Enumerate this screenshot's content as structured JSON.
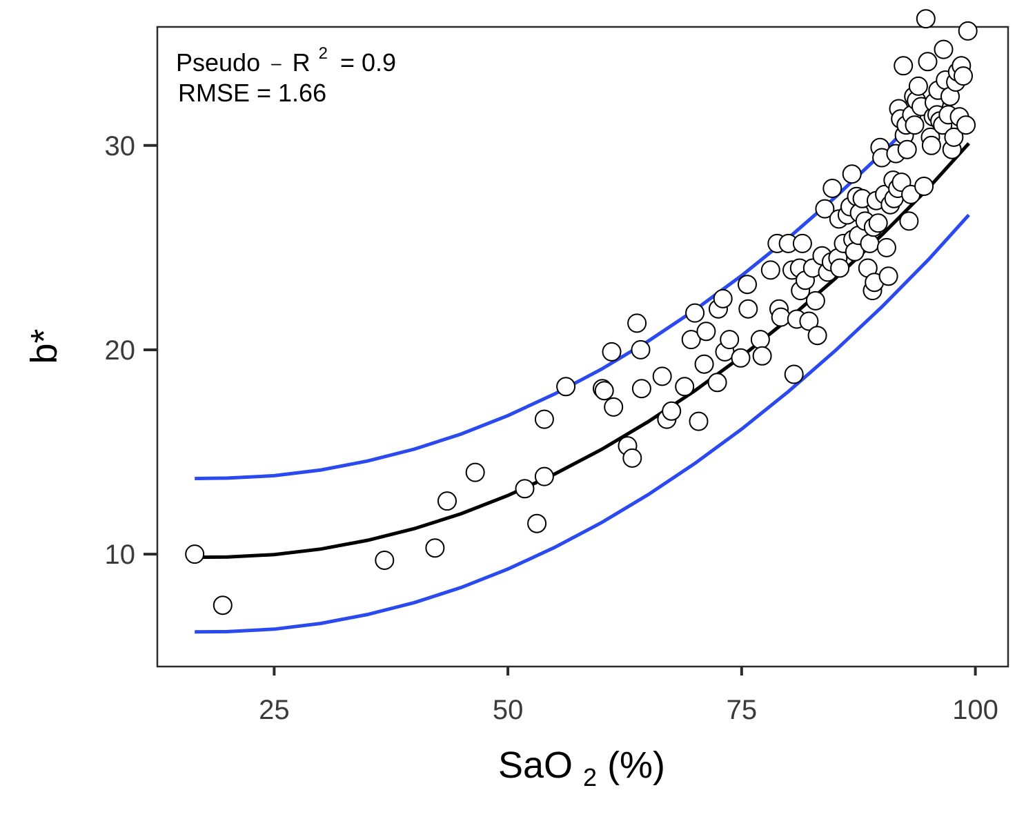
{
  "chart_data": {
    "type": "scatter",
    "xlabel": {
      "base": "SaO",
      "sub": "2",
      "rest": " (%)"
    },
    "ylabel": "b*",
    "xlim": [
      12.5,
      103.5
    ],
    "ylim": [
      4.5,
      35.8
    ],
    "x_ticks": [
      25,
      50,
      75,
      100
    ],
    "y_ticks": [
      10,
      20,
      30
    ],
    "grid": false,
    "annotations": {
      "r2": {
        "prefix": "Pseudo",
        "dash": "–",
        "r": "R",
        "sup": "2",
        "suffix": "= 0.9"
      },
      "rmse": "RMSE = 1.66"
    },
    "colors": {
      "points_fill": "#ffffff",
      "points_stroke": "#000000",
      "fit_line": "#000000",
      "interval_lines": "#2a4af0"
    },
    "fit": {
      "x": [
        16.5,
        20,
        25,
        30,
        35,
        40,
        45,
        50,
        55,
        60,
        65,
        70,
        75,
        80,
        85,
        90,
        95,
        99.3
      ],
      "y": [
        9.85,
        9.86,
        9.98,
        10.25,
        10.68,
        11.25,
        11.98,
        12.87,
        13.92,
        15.12,
        16.48,
        18.0,
        19.67,
        21.5,
        23.48,
        25.62,
        27.92,
        30.1
      ]
    },
    "upper_band": {
      "x": [
        16.5,
        20,
        25,
        30,
        35,
        40,
        45,
        50,
        55,
        60,
        65,
        70,
        75,
        80,
        85,
        90,
        95,
        99.3
      ],
      "y": [
        13.7,
        13.72,
        13.84,
        14.12,
        14.56,
        15.14,
        15.88,
        16.78,
        17.84,
        19.05,
        20.42,
        21.95,
        23.63,
        25.47,
        27.46,
        29.61,
        31.93,
        34.1
      ]
    },
    "lower_band": {
      "x": [
        16.5,
        20,
        25,
        30,
        35,
        40,
        45,
        50,
        55,
        60,
        65,
        70,
        75,
        80,
        85,
        90,
        95,
        99.3
      ],
      "y": [
        6.2,
        6.21,
        6.33,
        6.61,
        7.05,
        7.63,
        8.37,
        9.27,
        10.33,
        11.54,
        12.91,
        14.44,
        16.12,
        17.96,
        19.95,
        22.1,
        24.42,
        26.6
      ]
    },
    "points": [
      [
        16.5,
        10.0
      ],
      [
        19.5,
        7.5
      ],
      [
        36.8,
        9.7
      ],
      [
        42.2,
        10.3
      ],
      [
        43.5,
        12.6
      ],
      [
        46.5,
        14.0
      ],
      [
        51.8,
        13.2
      ],
      [
        53.1,
        11.5
      ],
      [
        53.9,
        13.8
      ],
      [
        53.9,
        16.6
      ],
      [
        56.2,
        18.2
      ],
      [
        60.1,
        18.1
      ],
      [
        60.3,
        18.0
      ],
      [
        61.1,
        19.9
      ],
      [
        61.3,
        17.2
      ],
      [
        62.8,
        15.3
      ],
      [
        63.3,
        14.7
      ],
      [
        63.8,
        21.3
      ],
      [
        64.2,
        20.0
      ],
      [
        64.3,
        18.1
      ],
      [
        66.5,
        18.7
      ],
      [
        67.0,
        16.6
      ],
      [
        67.5,
        17.0
      ],
      [
        68.9,
        18.2
      ],
      [
        69.6,
        20.5
      ],
      [
        70.0,
        21.8
      ],
      [
        70.4,
        16.5
      ],
      [
        71.0,
        19.3
      ],
      [
        71.2,
        20.9
      ],
      [
        72.4,
        18.4
      ],
      [
        72.5,
        22.0
      ],
      [
        73.0,
        22.5
      ],
      [
        73.2,
        19.9
      ],
      [
        73.7,
        20.5
      ],
      [
        74.9,
        19.6
      ],
      [
        75.6,
        23.2
      ],
      [
        75.7,
        22.0
      ],
      [
        77.0,
        20.5
      ],
      [
        77.2,
        19.7
      ],
      [
        78.1,
        23.9
      ],
      [
        78.8,
        25.2
      ],
      [
        79.0,
        22.0
      ],
      [
        79.2,
        21.6
      ],
      [
        80.0,
        25.2
      ],
      [
        80.4,
        23.9
      ],
      [
        80.6,
        18.8
      ],
      [
        80.9,
        21.5
      ],
      [
        81.2,
        24.0
      ],
      [
        81.3,
        22.9
      ],
      [
        81.5,
        25.2
      ],
      [
        81.8,
        23.4
      ],
      [
        82.2,
        21.4
      ],
      [
        82.6,
        24.0
      ],
      [
        82.9,
        22.4
      ],
      [
        83.1,
        20.7
      ],
      [
        83.6,
        24.6
      ],
      [
        83.9,
        26.9
      ],
      [
        84.2,
        23.8
      ],
      [
        84.6,
        24.3
      ],
      [
        84.7,
        27.9
      ],
      [
        85.3,
        24.5
      ],
      [
        85.4,
        26.4
      ],
      [
        85.5,
        24.0
      ],
      [
        85.9,
        25.2
      ],
      [
        86.3,
        26.6
      ],
      [
        86.6,
        27.0
      ],
      [
        86.8,
        28.6
      ],
      [
        86.9,
        25.4
      ],
      [
        87.1,
        24.8
      ],
      [
        87.3,
        27.5
      ],
      [
        87.5,
        25.6
      ],
      [
        87.6,
        26.7
      ],
      [
        87.9,
        27.4
      ],
      [
        88.2,
        26.3
      ],
      [
        88.5,
        24.0
      ],
      [
        88.7,
        25.2
      ],
      [
        89.0,
        22.9
      ],
      [
        89.1,
        26.0
      ],
      [
        89.2,
        23.3
      ],
      [
        89.4,
        27.3
      ],
      [
        89.6,
        26.2
      ],
      [
        89.8,
        29.9
      ],
      [
        90.0,
        29.4
      ],
      [
        90.3,
        27.6
      ],
      [
        90.5,
        25.0
      ],
      [
        90.7,
        23.6
      ],
      [
        90.9,
        27.1
      ],
      [
        91.2,
        28.3
      ],
      [
        91.3,
        27.4
      ],
      [
        91.5,
        29.6
      ],
      [
        91.7,
        27.9
      ],
      [
        91.8,
        31.8
      ],
      [
        92.0,
        31.3
      ],
      [
        92.1,
        28.2
      ],
      [
        92.3,
        33.9
      ],
      [
        92.4,
        30.5
      ],
      [
        92.6,
        31.0
      ],
      [
        92.7,
        29.8
      ],
      [
        92.9,
        26.3
      ],
      [
        93.1,
        27.6
      ],
      [
        93.2,
        31.5
      ],
      [
        93.4,
        32.4
      ],
      [
        93.5,
        31.0
      ],
      [
        93.7,
        32.2
      ],
      [
        93.9,
        32.9
      ],
      [
        94.2,
        31.9
      ],
      [
        94.5,
        28.0
      ],
      [
        94.7,
        36.2
      ],
      [
        94.9,
        34.1
      ],
      [
        95.2,
        30.4
      ],
      [
        95.3,
        30.0
      ],
      [
        95.5,
        31.4
      ],
      [
        95.6,
        32.1
      ],
      [
        95.9,
        31.5
      ],
      [
        96.0,
        32.7
      ],
      [
        96.2,
        31.2
      ],
      [
        96.5,
        31.0
      ],
      [
        96.6,
        34.7
      ],
      [
        96.8,
        33.2
      ],
      [
        97.1,
        31.5
      ],
      [
        97.3,
        32.4
      ],
      [
        97.5,
        29.8
      ],
      [
        97.7,
        30.4
      ],
      [
        97.9,
        33.1
      ],
      [
        98.1,
        33.6
      ],
      [
        98.3,
        31.4
      ],
      [
        98.5,
        33.9
      ],
      [
        98.7,
        33.4
      ],
      [
        99.0,
        31.0
      ],
      [
        99.2,
        35.6
      ]
    ]
  }
}
